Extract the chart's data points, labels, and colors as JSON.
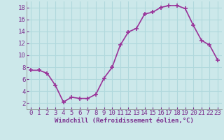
{
  "x": [
    0,
    1,
    2,
    3,
    4,
    5,
    6,
    7,
    8,
    9,
    10,
    11,
    12,
    13,
    14,
    15,
    16,
    17,
    18,
    19,
    20,
    21,
    22,
    23
  ],
  "y": [
    7.5,
    7.5,
    7.0,
    5.0,
    2.2,
    3.0,
    2.8,
    2.8,
    3.5,
    6.2,
    8.0,
    11.7,
    13.9,
    14.5,
    16.9,
    17.2,
    18.0,
    18.3,
    18.3,
    17.8,
    15.0,
    12.5,
    11.7,
    9.2
  ],
  "line_color": "#993399",
  "marker": "+",
  "marker_size": 4,
  "marker_linewidth": 1.2,
  "bg_color": "#cce8ea",
  "grid_color": "#b0d8dc",
  "xlim": [
    -0.5,
    23.5
  ],
  "ylim": [
    1,
    19
  ],
  "yticks": [
    2,
    4,
    6,
    8,
    10,
    12,
    14,
    16,
    18
  ],
  "xticks": [
    0,
    1,
    2,
    3,
    4,
    5,
    6,
    7,
    8,
    9,
    10,
    11,
    12,
    13,
    14,
    15,
    16,
    17,
    18,
    19,
    20,
    21,
    22,
    23
  ],
  "xlabel": "Windchill (Refroidissement éolien,°C)",
  "xlabel_fontsize": 6.5,
  "tick_fontsize": 6.5,
  "tick_color": "#7b2f8e",
  "label_color": "#7b2f8e",
  "line_width": 1.2
}
